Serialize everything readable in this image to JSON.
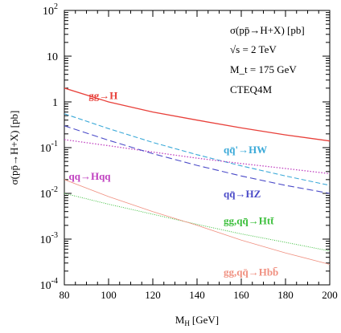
{
  "chart_data": {
    "type": "line",
    "ylabel": "σ(pp̄→H+X) [pb]",
    "xlabel": "M_H [GeV]",
    "xlabel_main": "M",
    "xlabel_sub": "H",
    "xlabel_unit": "[GeV]",
    "xlim": [
      80,
      200
    ],
    "ylim": [
      0.0001,
      100
    ],
    "yscale": "log",
    "grid": false,
    "x_ticks": [
      {
        "value": 80,
        "label": "80"
      },
      {
        "value": 100,
        "label": "100"
      },
      {
        "value": 120,
        "label": "120"
      },
      {
        "value": 140,
        "label": "140"
      },
      {
        "value": 160,
        "label": "160"
      },
      {
        "value": 180,
        "label": "180"
      },
      {
        "value": 200,
        "label": "200"
      }
    ],
    "y_ticks": [
      {
        "value": 100,
        "base": "10",
        "exp": "2"
      },
      {
        "value": 10,
        "base": "10",
        "exp": ""
      },
      {
        "value": 1,
        "base": "1",
        "exp": ""
      },
      {
        "value": 0.1,
        "base": "10",
        "exp": "-1"
      },
      {
        "value": 0.01,
        "base": "10",
        "exp": "-2"
      },
      {
        "value": 0.001,
        "base": "10",
        "exp": "-3"
      },
      {
        "value": 0.0001,
        "base": "10",
        "exp": "-4"
      }
    ],
    "info_lines": [
      "σ(pp̄→H+X) [pb]",
      "√s = 2 TeV",
      "M_t = 175 GeV",
      "CTEQ4M"
    ],
    "series": [
      {
        "name": "gg→H",
        "color": "#e8403a",
        "dash": "solid",
        "x": [
          80,
          100,
          120,
          140,
          160,
          180,
          200
        ],
        "y": [
          2.0,
          1.0,
          0.6,
          0.4,
          0.27,
          0.19,
          0.14
        ]
      },
      {
        "name": "qq̄'→HW",
        "color": "#3aa9d8",
        "dash": "dashed",
        "x": [
          80,
          100,
          120,
          140,
          160,
          180,
          200
        ],
        "y": [
          0.55,
          0.26,
          0.13,
          0.07,
          0.04,
          0.024,
          0.015
        ]
      },
      {
        "name": "qq→Hqq",
        "color": "#c040c0",
        "dash": "dotted",
        "x": [
          80,
          100,
          120,
          140,
          160,
          180,
          200
        ],
        "y": [
          0.15,
          0.11,
          0.08,
          0.059,
          0.045,
          0.035,
          0.027
        ]
      },
      {
        "name": "qq̄→HZ",
        "color": "#4a4ac8",
        "dash": "longdash",
        "x": [
          80,
          100,
          120,
          140,
          160,
          180,
          200
        ],
        "y": [
          0.3,
          0.145,
          0.074,
          0.041,
          0.024,
          0.015,
          0.01
        ]
      },
      {
        "name": "gg,qq̄→Htt̄",
        "color": "#3cbf3c",
        "dash": "dotted-fine",
        "x": [
          80,
          100,
          120,
          140,
          160,
          180,
          200
        ],
        "y": [
          0.01,
          0.0058,
          0.0035,
          0.0021,
          0.0013,
          0.00085,
          0.00055
        ]
      },
      {
        "name": "gg,qq̄→Hbb̄",
        "color": "#f09080",
        "dash": "solid-thin",
        "x": [
          80,
          100,
          120,
          140,
          160,
          180,
          200
        ],
        "y": [
          0.02,
          0.0085,
          0.004,
          0.002,
          0.00095,
          0.0005,
          0.00028
        ]
      }
    ],
    "curve_labels": [
      {
        "series": 0,
        "text": "gg→H",
        "x": 91,
        "y": 1.15
      },
      {
        "series": 1,
        "text": "qq̄'→HW",
        "x": 152,
        "y": 0.075
      },
      {
        "series": 2,
        "text": "qq→Hqq",
        "x": 82,
        "y": 0.02
      },
      {
        "series": 3,
        "text": "qq̄→HZ",
        "x": 152,
        "y": 0.0082
      },
      {
        "series": 4,
        "text": "gg,qq̄→Htt̄",
        "x": 152,
        "y": 0.0021
      },
      {
        "series": 5,
        "text": "gg,qq̄→Hbb̄",
        "x": 152,
        "y": 0.00016
      }
    ]
  }
}
